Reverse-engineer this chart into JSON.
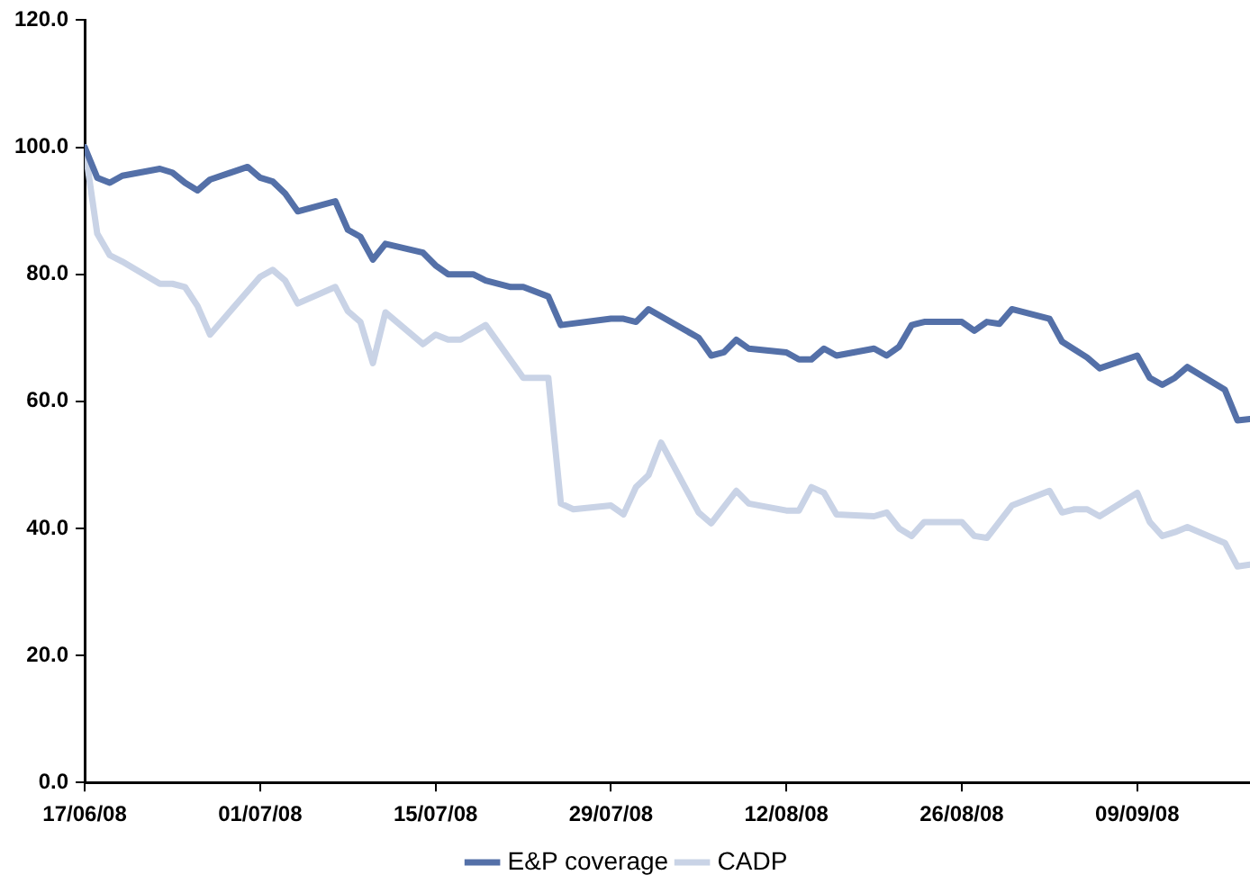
{
  "chart_data": {
    "type": "line",
    "legend": "bottom",
    "line_style": "solid",
    "marker": "none",
    "xlim": [
      "2008-06-17",
      "2008-09-18"
    ],
    "xticks": [
      {
        "value": "2008-06-17",
        "label": "17/06/08"
      },
      {
        "value": "2008-07-01",
        "label": "01/07/08"
      },
      {
        "value": "2008-07-15",
        "label": "15/07/08"
      },
      {
        "value": "2008-07-29",
        "label": "29/07/08"
      },
      {
        "value": "2008-08-12",
        "label": "12/08/08"
      },
      {
        "value": "2008-08-26",
        "label": "26/08/08"
      },
      {
        "value": "2008-09-09",
        "label": "09/09/08"
      }
    ],
    "ylim": [
      0,
      120
    ],
    "yticks": [
      {
        "value": 0,
        "label": "0.0"
      },
      {
        "value": 20,
        "label": "20.0"
      },
      {
        "value": 40,
        "label": "40.0"
      },
      {
        "value": 60,
        "label": "60.0"
      },
      {
        "value": 80,
        "label": "80.0"
      },
      {
        "value": 100,
        "label": "100.0"
      },
      {
        "value": 120,
        "label": "120.0"
      }
    ],
    "series": [
      {
        "name": "E&P coverage",
        "color": "#5470a8",
        "x": [
          "2008-06-17",
          "2008-06-18",
          "2008-06-19",
          "2008-06-20",
          "2008-06-23",
          "2008-06-24",
          "2008-06-25",
          "2008-06-26",
          "2008-06-27",
          "2008-06-30",
          "2008-07-01",
          "2008-07-02",
          "2008-07-03",
          "2008-07-04",
          "2008-07-07",
          "2008-07-08",
          "2008-07-09",
          "2008-07-10",
          "2008-07-11",
          "2008-07-14",
          "2008-07-15",
          "2008-07-16",
          "2008-07-18",
          "2008-07-19",
          "2008-07-21",
          "2008-07-22",
          "2008-07-24",
          "2008-07-25",
          "2008-07-29",
          "2008-07-30",
          "2008-07-31",
          "2008-08-01",
          "2008-08-05",
          "2008-08-06",
          "2008-08-07",
          "2008-08-08",
          "2008-08-09",
          "2008-08-12",
          "2008-08-13",
          "2008-08-14",
          "2008-08-15",
          "2008-08-16",
          "2008-08-19",
          "2008-08-20",
          "2008-08-21",
          "2008-08-22",
          "2008-08-23",
          "2008-08-26",
          "2008-08-27",
          "2008-08-28",
          "2008-08-29",
          "2008-08-30",
          "2008-09-02",
          "2008-09-03",
          "2008-09-05",
          "2008-09-06",
          "2008-09-09",
          "2008-09-10",
          "2008-09-11",
          "2008-09-12",
          "2008-09-13",
          "2008-09-16",
          "2008-09-17",
          "2008-09-18"
        ],
        "values": [
          100,
          95.2,
          94.4,
          95.5,
          96.6,
          96,
          94.4,
          93.2,
          94.9,
          96.9,
          95.2,
          94.6,
          92.7,
          89.9,
          91.5,
          87,
          85.9,
          82.3,
          84.8,
          83.4,
          81.4,
          80,
          80,
          79,
          78,
          78,
          76.5,
          72,
          73,
          73,
          72.5,
          74.5,
          70,
          67.2,
          67.7,
          69.7,
          68.3,
          67.7,
          66.6,
          66.6,
          68.3,
          67.2,
          68.3,
          67.2,
          68.6,
          72,
          72.5,
          72.5,
          71.1,
          72.5,
          72.2,
          74.5,
          73,
          69.4,
          66.9,
          65.2,
          67.2,
          63.7,
          62.6,
          63.7,
          65.4,
          61.8,
          57,
          57.2
        ]
      },
      {
        "name": "CADP",
        "color": "#c9d3e6",
        "x": [
          "2008-06-17",
          "2008-06-18",
          "2008-06-19",
          "2008-06-20",
          "2008-06-23",
          "2008-06-24",
          "2008-06-25",
          "2008-06-26",
          "2008-06-27",
          "2008-07-01",
          "2008-07-02",
          "2008-07-03",
          "2008-07-04",
          "2008-07-07",
          "2008-07-08",
          "2008-07-09",
          "2008-07-10",
          "2008-07-11",
          "2008-07-14",
          "2008-07-15",
          "2008-07-16",
          "2008-07-17",
          "2008-07-19",
          "2008-07-22",
          "2008-07-24",
          "2008-07-25",
          "2008-07-26",
          "2008-07-29",
          "2008-07-30",
          "2008-07-31",
          "2008-08-01",
          "2008-08-02",
          "2008-08-05",
          "2008-08-06",
          "2008-08-08",
          "2008-08-09",
          "2008-08-12",
          "2008-08-13",
          "2008-08-14",
          "2008-08-15",
          "2008-08-16",
          "2008-08-19",
          "2008-08-20",
          "2008-08-21",
          "2008-08-22",
          "2008-08-23",
          "2008-08-26",
          "2008-08-27",
          "2008-08-28",
          "2008-08-30",
          "2008-09-02",
          "2008-09-03",
          "2008-09-04",
          "2008-09-05",
          "2008-09-06",
          "2008-09-09",
          "2008-09-10",
          "2008-09-11",
          "2008-09-12",
          "2008-09-13",
          "2008-09-16",
          "2008-09-17",
          "2008-09-18"
        ],
        "values": [
          100,
          86.4,
          83,
          82,
          78.5,
          78.5,
          78,
          75,
          70.5,
          79.6,
          80.7,
          79,
          75.4,
          78,
          74.2,
          72.5,
          66,
          74,
          69,
          70.5,
          69.7,
          69.7,
          72,
          63.7,
          63.7,
          43.9,
          43,
          43.6,
          42.2,
          46.5,
          48.4,
          53.5,
          42.5,
          40.8,
          45.9,
          43.9,
          42.8,
          42.8,
          46.5,
          45.6,
          42.2,
          41.9,
          42.5,
          40,
          38.8,
          41,
          41,
          38.8,
          38.5,
          43.6,
          45.9,
          42.5,
          43,
          43,
          41.9,
          45.6,
          41,
          38.8,
          39.4,
          40.2,
          37.7,
          34,
          34.3
        ]
      }
    ]
  }
}
